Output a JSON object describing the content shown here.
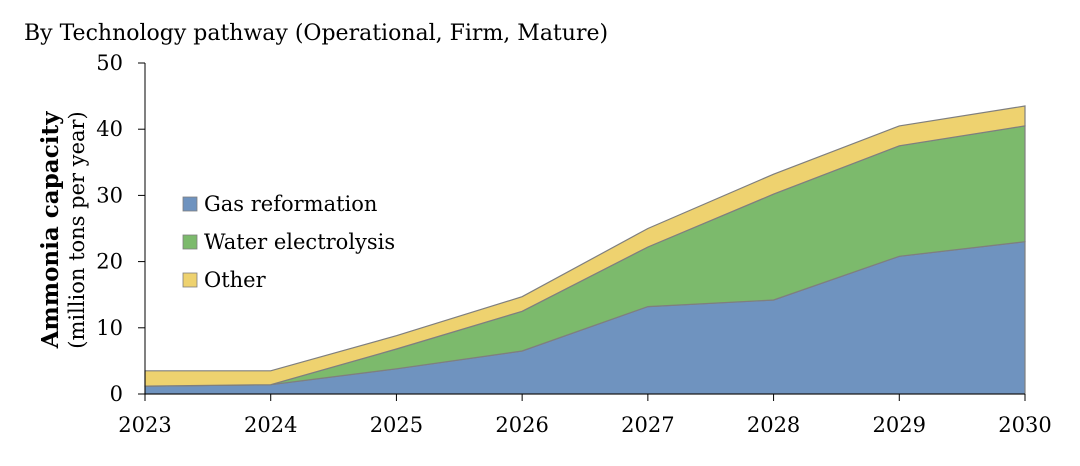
{
  "chart_data": {
    "type": "area",
    "stacked": true,
    "title": "By Technology pathway (Operational, Firm, Mature)",
    "ylabel": "Ammonia capacity",
    "ylabel_sub": "(million tons per year)",
    "xlabel": "",
    "x": [
      2023,
      2024,
      2025,
      2026,
      2027,
      2028,
      2029,
      2030
    ],
    "ylim": [
      0,
      50
    ],
    "yticks": [
      0,
      10,
      20,
      30,
      40,
      50
    ],
    "grid": false,
    "legend_position": "left-center",
    "series": [
      {
        "name": "Gas reformation",
        "color": "#6f93bf",
        "values": [
          1.2,
          1.4,
          3.8,
          6.5,
          13.2,
          14.2,
          20.8,
          23.0
        ]
      },
      {
        "name": "Water electrolysis",
        "color": "#7cba6c",
        "values": [
          0.0,
          0.0,
          3.0,
          6.0,
          9.0,
          16.0,
          16.7,
          17.5
        ]
      },
      {
        "name": "Other",
        "color": "#eed26f",
        "values": [
          2.3,
          2.1,
          2.0,
          2.2,
          2.8,
          3.0,
          3.0,
          3.0
        ]
      }
    ]
  }
}
